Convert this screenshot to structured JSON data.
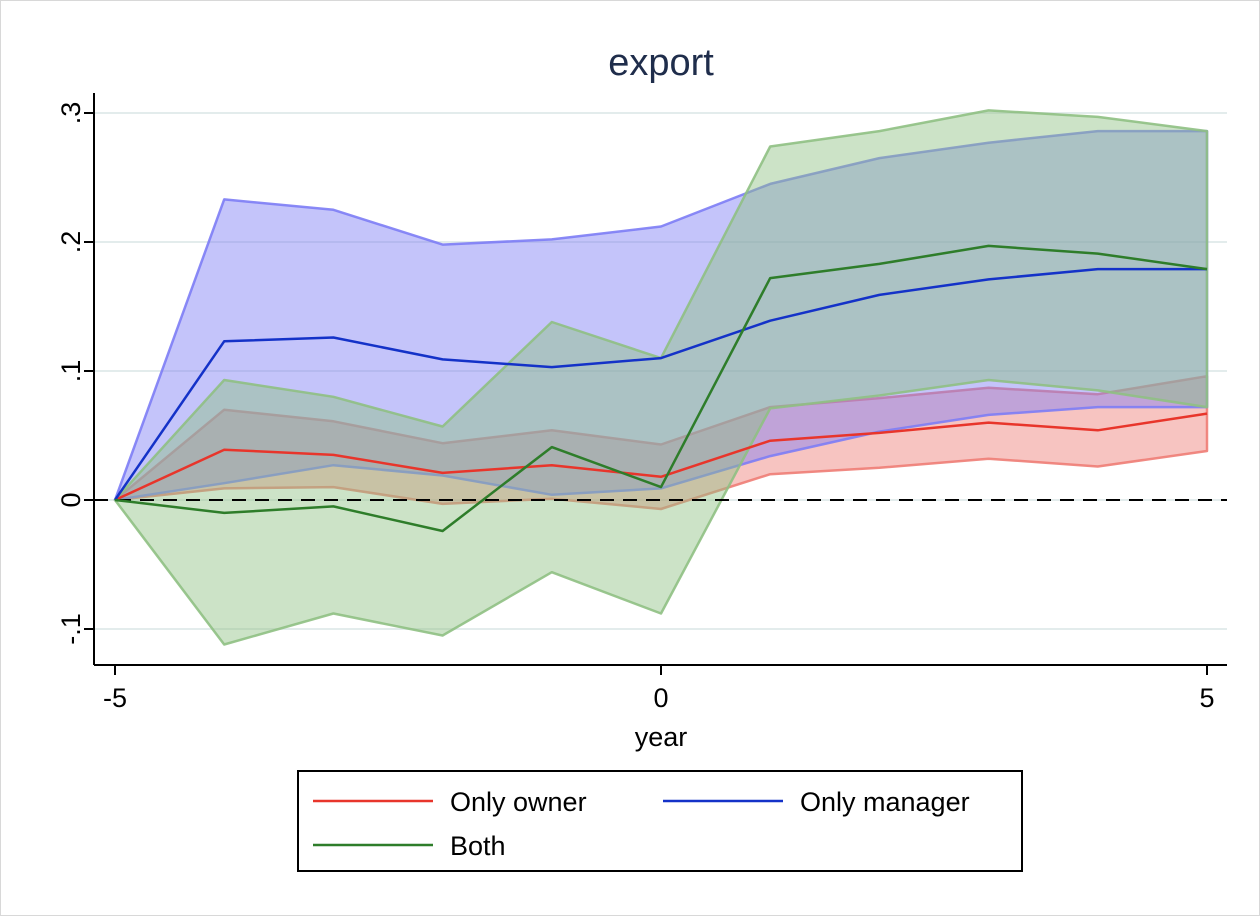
{
  "chart_data": {
    "type": "area",
    "title": "export",
    "xlabel": "year",
    "ylabel": "",
    "xlim": [
      -5,
      5
    ],
    "ylim": [
      -0.1,
      0.3
    ],
    "xticks": [
      {
        "value": -5,
        "label": "-5"
      },
      {
        "value": 0,
        "label": "0"
      },
      {
        "value": 5,
        "label": "5"
      }
    ],
    "yticks": [
      {
        "value": -0.1,
        "label": "-.1"
      },
      {
        "value": 0,
        "label": "0"
      },
      {
        "value": 0.1,
        "label": ".1"
      },
      {
        "value": 0.2,
        "label": ".2"
      },
      {
        "value": 0.3,
        "label": ".3"
      }
    ],
    "grid": "horizontal",
    "reference_line": {
      "y": 0,
      "style": "dashed"
    },
    "legend_position": "bottom",
    "x": [
      -5,
      -4,
      -3,
      -2,
      -1,
      0,
      1,
      2,
      3,
      4,
      5
    ],
    "series": [
      {
        "name": "Only owner",
        "line_color": "#e8352b",
        "band_color": "#ee7d75",
        "values": [
          0,
          0.039,
          0.035,
          0.021,
          0.027,
          0.018,
          0.046,
          0.052,
          0.06,
          0.054,
          0.067
        ],
        "lower": [
          0,
          0.009,
          0.01,
          -0.003,
          0.001,
          -0.007,
          0.02,
          0.025,
          0.032,
          0.026,
          0.038
        ],
        "upper": [
          0,
          0.07,
          0.061,
          0.044,
          0.054,
          0.043,
          0.072,
          0.079,
          0.087,
          0.082,
          0.096
        ]
      },
      {
        "name": "Only manager",
        "line_color": "#1432c8",
        "band_color": "#7d7df5",
        "values": [
          0,
          0.123,
          0.126,
          0.109,
          0.103,
          0.11,
          0.139,
          0.159,
          0.171,
          0.179,
          0.179
        ],
        "lower": [
          0,
          0.013,
          0.027,
          0.019,
          0.004,
          0.009,
          0.034,
          0.053,
          0.066,
          0.072,
          0.072
        ],
        "upper": [
          0,
          0.233,
          0.225,
          0.198,
          0.202,
          0.212,
          0.245,
          0.265,
          0.277,
          0.286,
          0.286
        ]
      },
      {
        "name": "Both",
        "line_color": "#2e7d2a",
        "band_color": "#8fc083",
        "values": [
          0,
          -0.01,
          -0.005,
          -0.024,
          0.041,
          0.01,
          0.172,
          0.183,
          0.197,
          0.191,
          0.179
        ],
        "lower": [
          0,
          -0.112,
          -0.088,
          -0.105,
          -0.056,
          -0.088,
          0.071,
          0.081,
          0.093,
          0.085,
          0.072
        ],
        "upper": [
          0,
          0.093,
          0.08,
          0.057,
          0.138,
          0.11,
          0.274,
          0.286,
          0.302,
          0.297,
          0.286
        ]
      }
    ]
  }
}
